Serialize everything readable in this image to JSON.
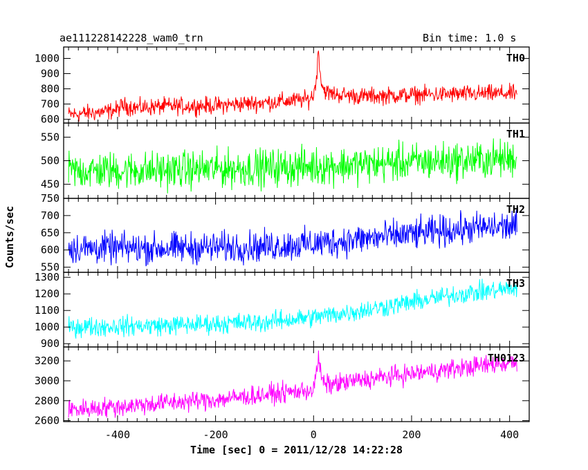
{
  "header": {
    "title": "ae111228142228_wam0_trn",
    "bin_time": "Bin time: 1.0 s"
  },
  "chart_data": {
    "type": "line",
    "title": "ae111228142228_wam0_trn",
    "subtitle": "Bin time: 1.0 s",
    "xlabel": "Time [sec] 0 = 2011/12/28 14:22:28",
    "ylabel": "Counts/sec",
    "xlim": [
      -510,
      440
    ],
    "x_ticks": [
      -400,
      -200,
      0,
      200,
      400
    ],
    "x_range": [
      -500,
      415
    ],
    "x_step": 1,
    "grid": false,
    "panels": [
      {
        "name": "TH0",
        "color": "#ff0000",
        "ylim": [
          575,
          1075
        ],
        "y_ticks": [
          600,
          700,
          800,
          900,
          1000
        ],
        "x": [
          -500,
          -460,
          -420,
          -400,
          -390,
          -360,
          -300,
          -200,
          -100,
          -50,
          -10,
          0,
          5,
          8,
          10,
          12,
          15,
          20,
          30,
          60,
          100,
          200,
          300,
          415
        ],
        "y": [
          630,
          640,
          650,
          665,
          690,
          675,
          685,
          690,
          710,
          720,
          730,
          760,
          850,
          960,
          1060,
          980,
          860,
          800,
          770,
          760,
          750,
          760,
          765,
          770
        ],
        "noise": 40
      },
      {
        "name": "TH1",
        "color": "#00ff00",
        "ylim": [
          420,
          580
        ],
        "y_ticks": [
          450,
          500,
          550
        ],
        "x": [
          -500,
          -300,
          -100,
          0,
          100,
          200,
          300,
          415
        ],
        "y": [
          478,
          480,
          485,
          488,
          492,
          497,
          500,
          505
        ],
        "noise": 28
      },
      {
        "name": "TH2",
        "color": "#0000ff",
        "ylim": [
          535,
          750
        ],
        "y_ticks": [
          550,
          600,
          650,
          700,
          750
        ],
        "x": [
          -500,
          -300,
          -100,
          0,
          100,
          200,
          300,
          415
        ],
        "y": [
          605,
          605,
          610,
          618,
          632,
          645,
          660,
          670
        ],
        "noise": 32
      },
      {
        "name": "TH3",
        "color": "#00ffff",
        "ylim": [
          880,
          1330
        ],
        "y_ticks": [
          900,
          1000,
          1100,
          1200,
          1300
        ],
        "x": [
          -500,
          -300,
          -100,
          0,
          100,
          200,
          300,
          415
        ],
        "y": [
          1000,
          1010,
          1030,
          1060,
          1100,
          1150,
          1200,
          1235
        ],
        "noise": 42
      },
      {
        "name": "TH0123",
        "color": "#ff00ff",
        "ylim": [
          2590,
          3340
        ],
        "y_ticks": [
          2600,
          2800,
          3000,
          3200
        ],
        "x": [
          -500,
          -400,
          -300,
          -200,
          -100,
          -20,
          0,
          5,
          10,
          15,
          20,
          30,
          60,
          100,
          200,
          300,
          415
        ],
        "y": [
          2710,
          2740,
          2780,
          2810,
          2860,
          2900,
          2910,
          3040,
          3250,
          3050,
          2980,
          2960,
          2980,
          3010,
          3070,
          3130,
          3190
        ],
        "noise": 70
      }
    ]
  }
}
